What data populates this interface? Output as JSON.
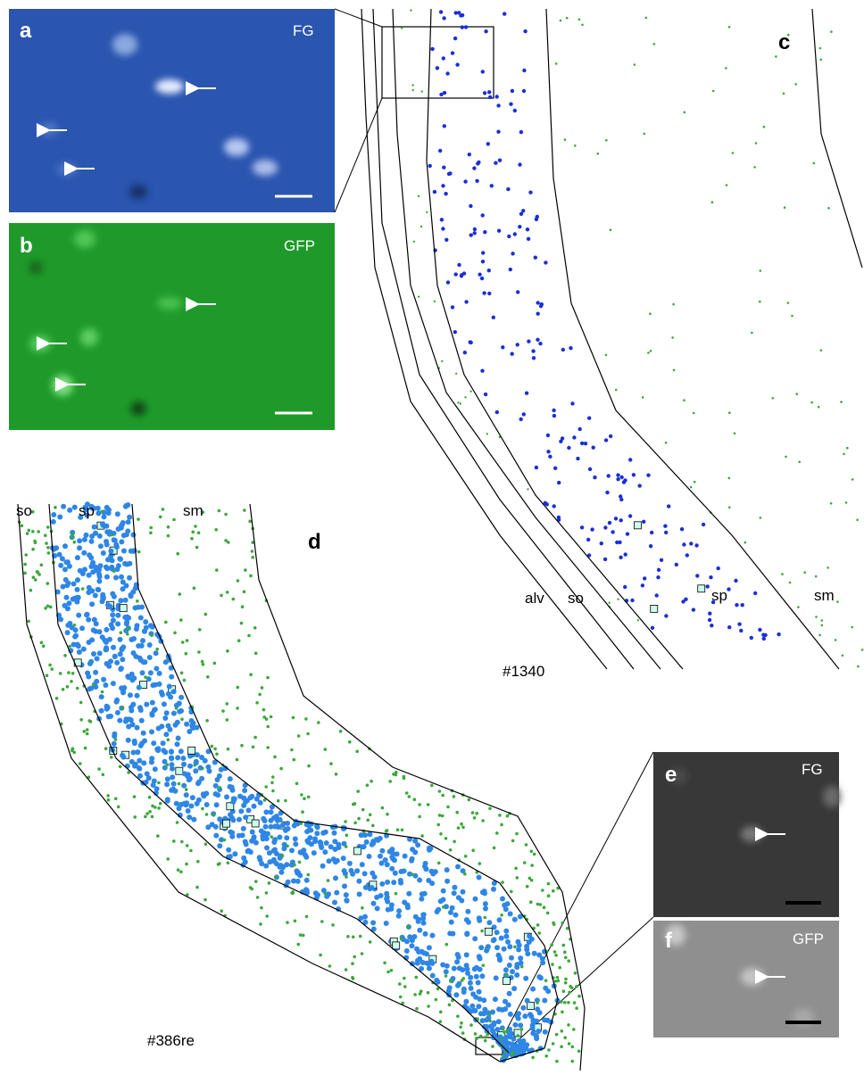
{
  "panels": {
    "a": {
      "label": "a",
      "channel": "FG"
    },
    "b": {
      "label": "b",
      "channel": "GFP"
    },
    "c": {
      "label": "c",
      "layers": [
        "alv",
        "so",
        "sp",
        "sm"
      ],
      "specimen": "#1340"
    },
    "d": {
      "label": "d",
      "layers": [
        "so",
        "sp",
        "sm"
      ],
      "specimen": "#386re"
    },
    "e": {
      "label": "e",
      "channel": "FG"
    },
    "f": {
      "label": "f",
      "channel": "GFP"
    }
  }
}
